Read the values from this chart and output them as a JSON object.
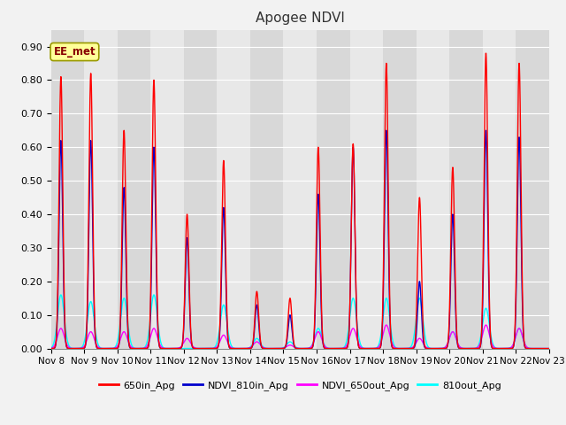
{
  "title": "Apogee NDVI",
  "annotation_text": "EE_met",
  "xlim_start": 8.0,
  "xlim_end": 23.0,
  "ylim": [
    0.0,
    0.95
  ],
  "yticks": [
    0.0,
    0.1,
    0.2,
    0.3,
    0.4,
    0.5,
    0.6,
    0.7,
    0.8,
    0.9
  ],
  "xtick_labels": [
    "Nov 8",
    "Nov 9",
    "Nov 10",
    "Nov 11",
    "Nov 12",
    "Nov 13",
    "Nov 14",
    "Nov 15",
    "Nov 16",
    "Nov 17",
    "Nov 18",
    "Nov 19",
    "Nov 20",
    "Nov 21",
    "Nov 22",
    "Nov 23"
  ],
  "xtick_positions": [
    8,
    9,
    10,
    11,
    12,
    13,
    14,
    15,
    16,
    17,
    18,
    19,
    20,
    21,
    22,
    23
  ],
  "colors": {
    "650in_Apg": "#FF0000",
    "NDVI_810in_Apg": "#0000CC",
    "NDVI_650out_Apg": "#FF00FF",
    "810out_Apg": "#00FFFF"
  },
  "legend_labels": [
    "650in_Apg",
    "NDVI_810in_Apg",
    "NDVI_650out_Apg",
    "810out_Apg"
  ],
  "fig_facecolor": "#F2F2F2",
  "plot_facecolor": "#E8E8E8",
  "grid_color": "#FFFFFF",
  "annotation_box_facecolor": "#FFFF99",
  "annotation_box_edgecolor": "#999900",
  "annotation_text_color": "#880000",
  "peaks": [
    [
      8.3,
      0.81,
      0.62,
      0.06,
      0.16
    ],
    [
      9.2,
      0.82,
      0.62,
      0.05,
      0.14
    ],
    [
      10.2,
      0.65,
      0.48,
      0.05,
      0.15
    ],
    [
      11.1,
      0.8,
      0.6,
      0.06,
      0.16
    ],
    [
      12.1,
      0.4,
      0.33,
      0.03,
      0.0
    ],
    [
      13.2,
      0.56,
      0.42,
      0.04,
      0.13
    ],
    [
      14.2,
      0.17,
      0.13,
      0.02,
      0.03
    ],
    [
      15.2,
      0.15,
      0.1,
      0.01,
      0.02
    ],
    [
      16.05,
      0.6,
      0.46,
      0.05,
      0.06
    ],
    [
      17.1,
      0.61,
      0.6,
      0.06,
      0.15
    ],
    [
      18.1,
      0.85,
      0.65,
      0.07,
      0.15
    ],
    [
      19.1,
      0.45,
      0.2,
      0.03,
      0.15
    ],
    [
      20.1,
      0.54,
      0.4,
      0.05,
      0.05
    ],
    [
      21.1,
      0.88,
      0.65,
      0.07,
      0.12
    ],
    [
      22.1,
      0.85,
      0.63,
      0.06,
      0.06
    ]
  ],
  "sigma_narrow": 0.055,
  "sigma_wide": 0.1
}
